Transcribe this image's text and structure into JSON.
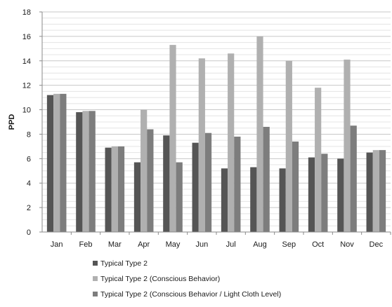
{
  "chart_data": {
    "type": "bar",
    "title": "",
    "xlabel": "",
    "ylabel": "PPD",
    "ylim": [
      0,
      18
    ],
    "yticks": [
      0,
      2,
      4,
      6,
      8,
      10,
      12,
      14,
      16,
      18
    ],
    "grid": true,
    "legend_position": "bottom",
    "categories": [
      "Jan",
      "Feb",
      "Mar",
      "Apr",
      "May",
      "Jun",
      "Jul",
      "Aug",
      "Sep",
      "Oct",
      "Nov",
      "Dec"
    ],
    "series": [
      {
        "name": "Typical Type 2",
        "color": "#555555",
        "values": [
          11.2,
          9.8,
          6.9,
          5.7,
          7.9,
          7.3,
          5.2,
          5.3,
          5.2,
          6.1,
          6.0,
          6.5
        ]
      },
      {
        "name": "Typical Type 2 (Conscious Behavior)",
        "color": "#b0b0b0",
        "values": [
          11.3,
          9.9,
          7.0,
          10.0,
          15.3,
          14.2,
          14.6,
          16.0,
          14.0,
          11.8,
          14.1,
          6.7
        ]
      },
      {
        "name": "Typical Type 2 (Conscious Behavior / Light Cloth Level)",
        "color": "#7d7d7d",
        "values": [
          11.3,
          9.9,
          7.0,
          8.4,
          5.7,
          8.1,
          7.8,
          8.6,
          7.4,
          6.4,
          8.7,
          6.7
        ]
      }
    ]
  }
}
